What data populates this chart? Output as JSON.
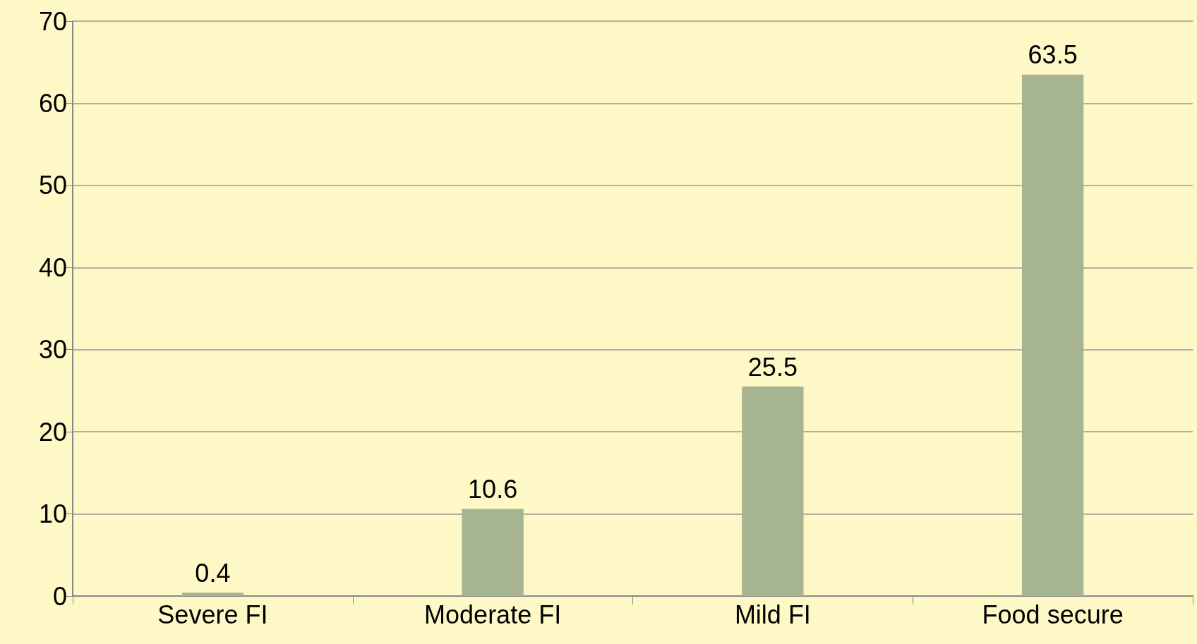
{
  "chart_data": {
    "type": "bar",
    "categories": [
      "Severe FI",
      "Moderate FI",
      "Mild FI",
      "Food secure"
    ],
    "values": [
      0.4,
      10.6,
      25.5,
      63.5
    ],
    "color": "#a6b491",
    "ylim": [
      0,
      70
    ],
    "yticks": [
      0,
      10,
      20,
      30,
      40,
      50,
      60,
      70
    ],
    "grid": true,
    "data_labels": true
  }
}
